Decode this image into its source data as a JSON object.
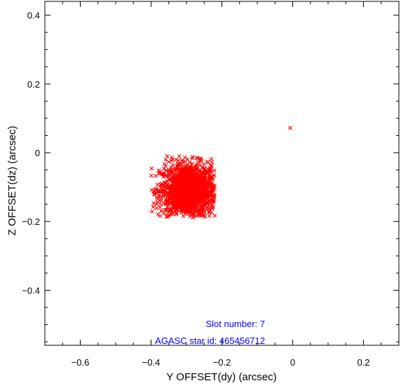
{
  "chart_data": {
    "type": "scatter",
    "title": "",
    "xlabel": "Y OFFSET(dy) (arcsec)",
    "ylabel": "Z OFFSET(dz) (arcsec)",
    "xlim": [
      -0.7,
      0.3
    ],
    "ylim": [
      -0.56,
      0.44
    ],
    "x_ticks": [
      -0.6,
      -0.4,
      -0.2,
      0,
      0.2
    ],
    "x_tick_labels": [
      "−0.6",
      "−0.4",
      "−0.2",
      "0",
      "0.2"
    ],
    "y_ticks": [
      -0.4,
      -0.2,
      0,
      0.2,
      0.4
    ],
    "y_tick_labels": [
      "−0.4",
      "−0.2",
      "0",
      "0.2",
      "0.4"
    ],
    "grid": false,
    "marker": "x",
    "marker_color": "#ff0000",
    "series": [
      {
        "cluster": {
          "center": [
            -0.295,
            -0.11
          ],
          "spread": [
            0.04,
            0.04
          ],
          "extent_x": [
            -0.4,
            -0.22
          ],
          "extent_y": [
            -0.19,
            -0.01
          ],
          "approx_points": 1500
        },
        "outliers": [
          {
            "x": -0.007,
            "y": 0.072
          }
        ]
      }
    ],
    "annotations": [
      {
        "name": "slot-number",
        "text": "Slot number: 7",
        "color": "#0000ff"
      },
      {
        "name": "agasc-star-id",
        "text": "AGASC star id: 465456712",
        "color": "#0000ff"
      }
    ]
  }
}
